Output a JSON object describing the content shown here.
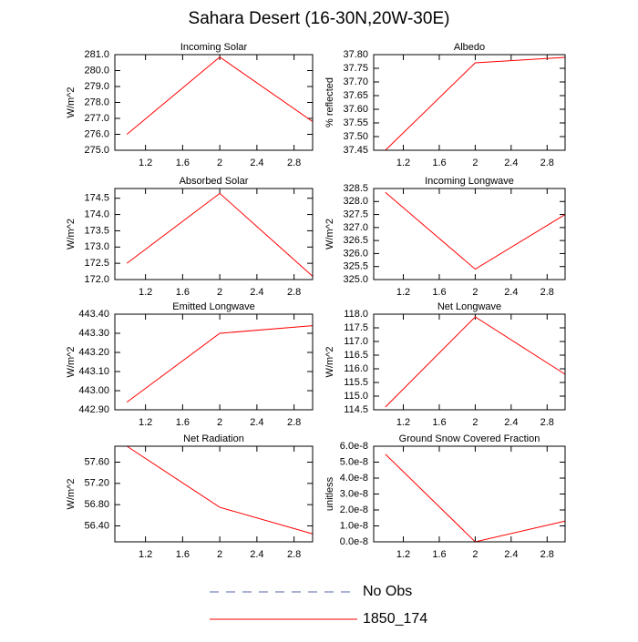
{
  "title": "Sahara Desert (16-30N,20W-30E)",
  "legend": [
    {
      "name": "No Obs",
      "color": "#5566aa",
      "dash": true
    },
    {
      "name": "1850_174",
      "color": "#ff0000",
      "dash": false
    }
  ],
  "chart_data": [
    {
      "type": "line",
      "title": "Incoming Solar",
      "ylabel": "W/m^2",
      "x": [
        1,
        2,
        3
      ],
      "values": [
        276.0,
        280.85,
        276.8
      ],
      "color": "#ff0000",
      "xlim": [
        0.87,
        3.0
      ],
      "xticks": [
        1.2,
        1.6,
        2.0,
        2.4,
        2.8
      ],
      "ylim": [
        275,
        281
      ],
      "yticks": [
        {
          "value": 275,
          "label": "275.0"
        },
        {
          "value": 276,
          "label": "276.0"
        },
        {
          "value": 277,
          "label": "277.0"
        },
        {
          "value": 278,
          "label": "278.0"
        },
        {
          "value": 279,
          "label": "279.0"
        },
        {
          "value": 280,
          "label": "280.0"
        },
        {
          "value": 281,
          "label": "281.0"
        }
      ]
    },
    {
      "type": "line",
      "title": "Albedo",
      "ylabel": "% reflected",
      "x": [
        1,
        2,
        3
      ],
      "values": [
        37.45,
        37.77,
        37.79
      ],
      "color": "#ff0000",
      "xlim": [
        0.87,
        3.0
      ],
      "xticks": [
        1.2,
        1.6,
        2.0,
        2.4,
        2.8
      ],
      "ylim": [
        37.45,
        37.8
      ],
      "yticks": [
        37.45,
        {
          "value": 37.5,
          "label": "37.50"
        },
        37.55,
        {
          "value": 37.6,
          "label": "37.60"
        },
        37.65,
        {
          "value": 37.7,
          "label": "37.70"
        },
        37.75,
        {
          "value": 37.8,
          "label": "37.80"
        }
      ]
    },
    {
      "type": "line",
      "title": "Absorbed Solar",
      "ylabel": "W/m^2",
      "x": [
        1,
        2,
        3
      ],
      "values": [
        172.5,
        174.65,
        172.1
      ],
      "color": "#ff0000",
      "xlim": [
        0.87,
        3.0
      ],
      "xticks": [
        1.2,
        1.6,
        2.0,
        2.4,
        2.8
      ],
      "ylim": [
        172,
        174.8
      ],
      "yticks": [
        {
          "value": 172,
          "label": "172.0"
        },
        172.5,
        {
          "value": 173,
          "label": "173.0"
        },
        173.5,
        {
          "value": 174,
          "label": "174.0"
        },
        174.5
      ]
    },
    {
      "type": "line",
      "title": "Incoming Longwave",
      "ylabel": "W/m^2",
      "x": [
        1,
        2,
        3
      ],
      "values": [
        328.35,
        325.4,
        327.5
      ],
      "color": "#ff0000",
      "xlim": [
        0.87,
        3.0
      ],
      "xticks": [
        1.2,
        1.6,
        2.0,
        2.4,
        2.8
      ],
      "ylim": [
        325,
        328.5
      ],
      "yticks": [
        {
          "value": 325,
          "label": "325.0"
        },
        325.5,
        {
          "value": 326,
          "label": "326.0"
        },
        326.5,
        {
          "value": 327,
          "label": "327.0"
        },
        327.5,
        {
          "value": 328,
          "label": "328.0"
        },
        328.5
      ]
    },
    {
      "type": "line",
      "title": "Emitted Longwave",
      "ylabel": "W/m^2",
      "x": [
        1,
        2,
        3
      ],
      "values": [
        442.94,
        443.3,
        443.34
      ],
      "color": "#ff0000",
      "xlim": [
        0.87,
        3.0
      ],
      "xticks": [
        1.2,
        1.6,
        2.0,
        2.4,
        2.8
      ],
      "ylim": [
        442.9,
        443.4
      ],
      "yticks": [
        {
          "value": 442.9,
          "label": "442.90"
        },
        {
          "value": 443.0,
          "label": "443.00"
        },
        {
          "value": 443.1,
          "label": "443.10"
        },
        {
          "value": 443.2,
          "label": "443.20"
        },
        {
          "value": 443.3,
          "label": "443.30"
        },
        {
          "value": 443.4,
          "label": "443.40"
        }
      ]
    },
    {
      "type": "line",
      "title": "Net Longwave",
      "ylabel": "W/m^2",
      "x": [
        1,
        2,
        3
      ],
      "values": [
        114.6,
        117.9,
        115.8
      ],
      "color": "#ff0000",
      "xlim": [
        0.87,
        3.0
      ],
      "xticks": [
        1.2,
        1.6,
        2.0,
        2.4,
        2.8
      ],
      "ylim": [
        114.5,
        118
      ],
      "yticks": [
        114.5,
        {
          "value": 115,
          "label": "115.0"
        },
        115.5,
        {
          "value": 116,
          "label": "116.0"
        },
        116.5,
        {
          "value": 117,
          "label": "117.0"
        },
        117.5,
        {
          "value": 118,
          "label": "118.0"
        }
      ]
    },
    {
      "type": "line",
      "title": "Net Radiation",
      "ylabel": "W/m^2",
      "x": [
        1,
        2,
        3
      ],
      "values": [
        57.9,
        56.75,
        56.25
      ],
      "color": "#ff0000",
      "xlim": [
        0.87,
        3.0
      ],
      "xticks": [
        1.2,
        1.6,
        2.0,
        2.4,
        2.8
      ],
      "ylim": [
        56.1,
        57.9
      ],
      "yticks": [
        {
          "value": 56.4,
          "label": "56.40"
        },
        {
          "value": 56.8,
          "label": "56.80"
        },
        {
          "value": 57.2,
          "label": "57.20"
        },
        {
          "value": 57.6,
          "label": "57.60"
        }
      ]
    },
    {
      "type": "line",
      "title": "Ground Snow Covered Fraction",
      "ylabel": "unitless",
      "x": [
        1,
        2,
        3
      ],
      "values": [
        5.5e-08,
        0,
        1.3e-08
      ],
      "color": "#ff0000",
      "xlim": [
        0.87,
        3.0
      ],
      "xticks": [
        1.2,
        1.6,
        2.0,
        2.4,
        2.8
      ],
      "ylim": [
        0,
        6e-08
      ],
      "yticks": [
        {
          "value": 0,
          "label": "0.0e-8"
        },
        {
          "value": 1e-08,
          "label": "1.0e-8"
        },
        {
          "value": 2e-08,
          "label": "2.0e-8"
        },
        {
          "value": 3e-08,
          "label": "3.0e-8"
        },
        {
          "value": 4e-08,
          "label": "4.0e-8"
        },
        {
          "value": 5e-08,
          "label": "5.0e-8"
        },
        {
          "value": 6e-08,
          "label": "6.0e-8"
        }
      ]
    }
  ]
}
